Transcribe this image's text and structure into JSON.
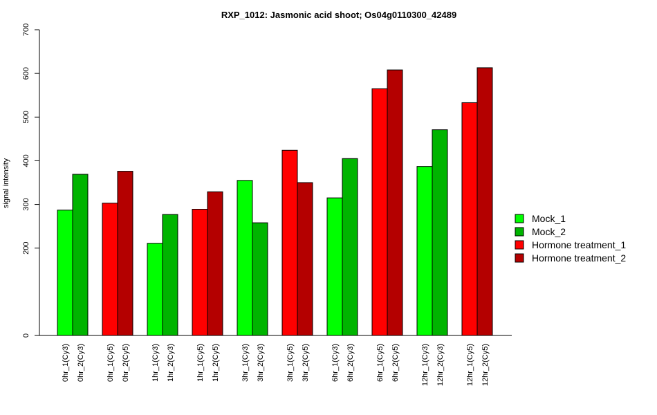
{
  "chart_data": {
    "type": "bar",
    "title": "RXP_1012: Jasmonic acid shoot; Os04g0110300_42489",
    "xlabel": "",
    "ylabel": "signal intensity",
    "ylim": [
      0,
      700
    ],
    "yticks": [
      0,
      200,
      300,
      400,
      500,
      600,
      700
    ],
    "grid": false,
    "legend_position": "right",
    "series": [
      {
        "name": "Mock_1",
        "color": "#00ff00"
      },
      {
        "name": "Mock_2",
        "color": "#00b400"
      },
      {
        "name": "Hormone treatment_1",
        "color": "#ff0000"
      },
      {
        "name": "Hormone treatment_2",
        "color": "#b40000"
      }
    ],
    "bars": [
      {
        "label": "0hr_1(Cy3)",
        "value": 287,
        "series": 0
      },
      {
        "label": "0hr_2(Cy3)",
        "value": 369,
        "series": 1
      },
      {
        "label": "0hr_1(Cy5)",
        "value": 303,
        "series": 2
      },
      {
        "label": "0hr_2(Cy5)",
        "value": 376,
        "series": 3
      },
      {
        "label": "1hr_1(Cy3)",
        "value": 211,
        "series": 0
      },
      {
        "label": "1hr_2(Cy3)",
        "value": 277,
        "series": 1
      },
      {
        "label": "1hr_1(Cy5)",
        "value": 289,
        "series": 2
      },
      {
        "label": "1hr_2(Cy5)",
        "value": 329,
        "series": 3
      },
      {
        "label": "3hr_1(Cy3)",
        "value": 355,
        "series": 0
      },
      {
        "label": "3hr_2(Cy3)",
        "value": 258,
        "series": 1
      },
      {
        "label": "3hr_1(Cy5)",
        "value": 424,
        "series": 2
      },
      {
        "label": "3hr_2(Cy5)",
        "value": 350,
        "series": 3
      },
      {
        "label": "6hr_1(Cy3)",
        "value": 315,
        "series": 0
      },
      {
        "label": "6hr_2(Cy3)",
        "value": 405,
        "series": 1
      },
      {
        "label": "6hr_1(Cy5)",
        "value": 565,
        "series": 2
      },
      {
        "label": "6hr_2(Cy5)",
        "value": 608,
        "series": 3
      },
      {
        "label": "12hr_1(Cy3)",
        "value": 387,
        "series": 0
      },
      {
        "label": "12hr_2(Cy3)",
        "value": 471,
        "series": 1
      },
      {
        "label": "12hr_1(Cy5)",
        "value": 533,
        "series": 2
      },
      {
        "label": "12hr_2(Cy5)",
        "value": 613,
        "series": 3
      }
    ]
  }
}
